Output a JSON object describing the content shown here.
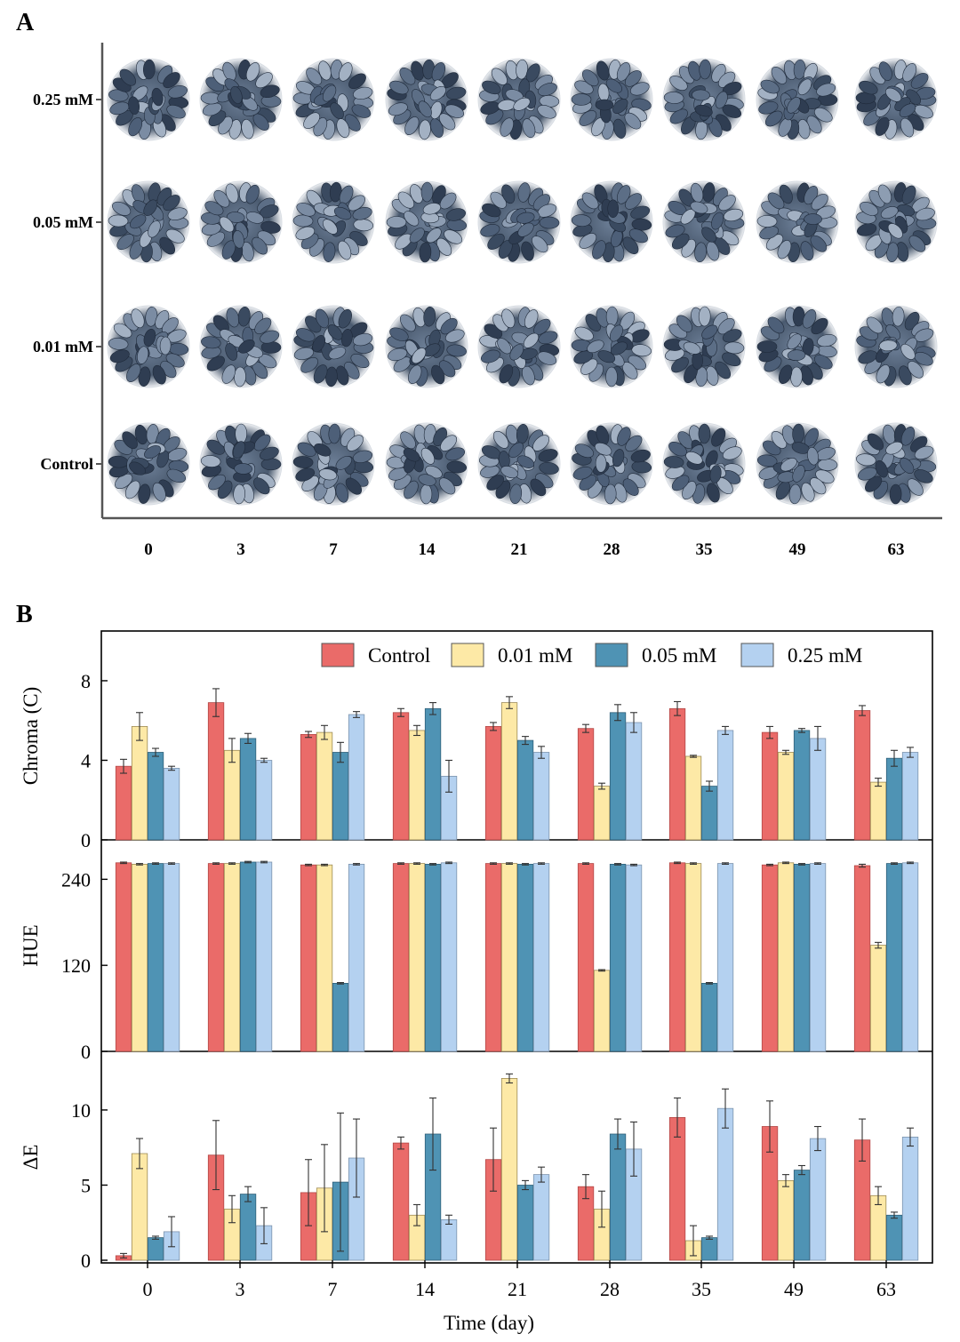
{
  "panel_a": {
    "letter": "A",
    "rows": [
      "0.25 mM",
      "0.05 mM",
      "0.01 mM",
      "Control"
    ],
    "days": [
      "0",
      "3",
      "7",
      "14",
      "21",
      "28",
      "35",
      "49",
      "63"
    ]
  },
  "chart_data": {
    "type": "bar",
    "panel_letter": "B",
    "categories": [
      "0",
      "3",
      "7",
      "14",
      "21",
      "28",
      "35",
      "49",
      "63"
    ],
    "xlabel": "Time (day)",
    "legend": {
      "position": "top-right",
      "entries": [
        "Control",
        "0.01 mM",
        "0.05 mM",
        "0.25 mM"
      ],
      "colors": [
        "#ea6b69",
        "#fde9a6",
        "#4f93b4",
        "#b4d1f0"
      ]
    },
    "subplots": [
      {
        "ylabel": "Chroma (C)",
        "ylim": [
          0,
          10.5
        ],
        "yticks": [
          0,
          4,
          8
        ],
        "series": [
          {
            "name": "Control",
            "values": [
              3.7,
              6.9,
              5.3,
              6.4,
              5.7,
              5.6,
              6.6,
              5.4,
              6.5
            ],
            "errors": [
              0.35,
              0.7,
              0.15,
              0.2,
              0.2,
              0.2,
              0.35,
              0.3,
              0.25
            ]
          },
          {
            "name": "0.01 mM",
            "values": [
              5.7,
              4.5,
              5.4,
              5.5,
              6.9,
              2.7,
              4.2,
              4.4,
              2.9
            ],
            "errors": [
              0.7,
              0.6,
              0.35,
              0.25,
              0.3,
              0.15,
              0.05,
              0.1,
              0.2
            ]
          },
          {
            "name": "0.05 mM",
            "values": [
              4.4,
              5.1,
              4.4,
              6.6,
              5.0,
              6.4,
              2.7,
              5.5,
              4.1
            ],
            "errors": [
              0.2,
              0.25,
              0.5,
              0.3,
              0.2,
              0.4,
              0.25,
              0.1,
              0.4
            ]
          },
          {
            "name": "0.25 mM",
            "values": [
              3.6,
              4.0,
              6.3,
              3.2,
              4.4,
              5.9,
              5.5,
              5.1,
              4.4
            ],
            "errors": [
              0.1,
              0.1,
              0.15,
              0.8,
              0.3,
              0.5,
              0.2,
              0.6,
              0.25
            ]
          }
        ]
      },
      {
        "ylabel": "HUE",
        "ylim": [
          0,
          295
        ],
        "yticks": [
          0,
          120,
          240
        ],
        "series": [
          {
            "name": "Control",
            "values": [
              263,
              262,
              260,
              262,
              262,
              262,
              263,
              260,
              259
            ],
            "errors": [
              1,
              1,
              1,
              1,
              1,
              1,
              1,
              1,
              2
            ]
          },
          {
            "name": "0.01 mM",
            "values": [
              261,
              262,
              260,
              262,
              262,
              113,
              262,
              263,
              148
            ],
            "errors": [
              1,
              1,
              1,
              1,
              1,
              1,
              1,
              1,
              4
            ]
          },
          {
            "name": "0.05 mM",
            "values": [
              262,
              264,
              95,
              261,
              261,
              261,
              95,
              261,
              262
            ],
            "errors": [
              1,
              1,
              1,
              1,
              1,
              1,
              1,
              1,
              1
            ]
          },
          {
            "name": "0.25 mM",
            "values": [
              262,
              264,
              261,
              263,
              262,
              260,
              262,
              262,
              263
            ],
            "errors": [
              1,
              1,
              1,
              1,
              1,
              1,
              1,
              1,
              1
            ]
          }
        ]
      },
      {
        "ylabel": "ΔE",
        "ylim": [
          0,
          13.9
        ],
        "yticks": [
          0,
          5,
          10
        ],
        "series": [
          {
            "name": "Control",
            "values": [
              0.3,
              7.0,
              4.5,
              7.8,
              6.7,
              4.9,
              9.5,
              8.9,
              8.0
            ],
            "errors": [
              0.15,
              2.3,
              2.2,
              0.4,
              2.1,
              0.8,
              1.3,
              1.7,
              1.4
            ]
          },
          {
            "name": "0.01 mM",
            "values": [
              7.1,
              3.4,
              4.8,
              3.0,
              12.1,
              3.4,
              1.3,
              5.3,
              4.3
            ],
            "errors": [
              1.0,
              0.9,
              2.9,
              0.7,
              0.3,
              1.2,
              1.0,
              0.4,
              0.6
            ]
          },
          {
            "name": "0.05 mM",
            "values": [
              1.5,
              4.4,
              5.2,
              8.4,
              5.0,
              8.4,
              1.5,
              6.0,
              3.0
            ],
            "errors": [
              0.1,
              0.5,
              4.6,
              2.4,
              0.3,
              1.0,
              0.1,
              0.3,
              0.2
            ]
          },
          {
            "name": "0.25 mM",
            "values": [
              1.9,
              2.3,
              6.8,
              2.7,
              5.7,
              7.4,
              10.1,
              8.1,
              8.2
            ],
            "errors": [
              1.0,
              1.2,
              2.6,
              0.3,
              0.5,
              1.8,
              1.3,
              0.8,
              0.6
            ]
          }
        ]
      }
    ]
  }
}
